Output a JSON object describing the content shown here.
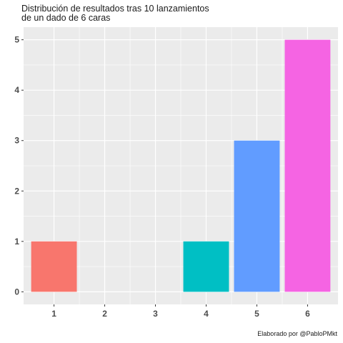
{
  "chart_data": {
    "type": "bar",
    "title_lines": [
      "Distribución de resultados tras 10 lanzamientos",
      "de un dado de 6 caras"
    ],
    "xlabel": "",
    "ylabel": "",
    "categories": [
      "1",
      "2",
      "3",
      "4",
      "5",
      "6"
    ],
    "values": [
      1,
      0,
      0,
      1,
      3,
      5
    ],
    "colors": [
      "#F8766D",
      "#B79F00",
      "#00BA38",
      "#00BFC4",
      "#619CFF",
      "#F564E3"
    ],
    "ylim": [
      -0.25,
      5.25
    ],
    "yticks": [
      0,
      1,
      2,
      3,
      4,
      5
    ],
    "grid": true,
    "legend": "none",
    "panel_color": "#EBEBEB",
    "caption": "Elaborado por @PabloPMkt"
  }
}
